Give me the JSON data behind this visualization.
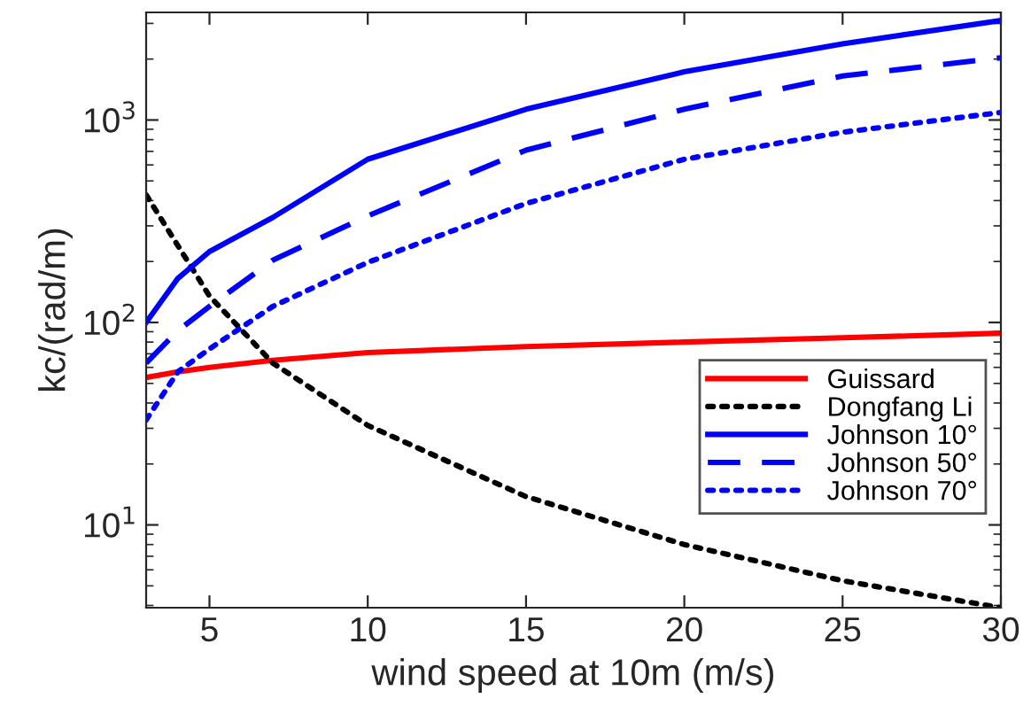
{
  "chart_data": {
    "type": "line",
    "xlabel": "wind speed at 10m (m/s)",
    "ylabel": "kc/(rad/m)",
    "log": "y",
    "x": [
      3,
      4,
      5,
      7,
      10,
      15,
      20,
      25,
      30
    ],
    "xlim": [
      3,
      30
    ],
    "xticks": [
      5,
      10,
      15,
      20,
      25,
      30
    ],
    "ylim": [
      3.9,
      3400
    ],
    "yticks": [
      {
        "value": 10,
        "label": "10$^{1}$"
      },
      {
        "value": 100,
        "label": "10$^{2}$"
      },
      {
        "value": 1000,
        "label": "10$^{3}$"
      }
    ],
    "grid": false,
    "legend": "bottom right",
    "marker": "none",
    "series": [
      {
        "name": "Guissard",
        "color": "#ff0000",
        "line_style": "solid",
        "values": [
          53.5,
          57,
          60,
          65,
          71,
          76,
          80,
          84,
          88.5
        ]
      },
      {
        "name": "Dongfang Li",
        "color": "#000000",
        "line_style": "dotted",
        "values": [
          427,
          240,
          135,
          63,
          31,
          13.8,
          8.0,
          5.3,
          3.9
        ]
      },
      {
        "name": "Johnson 10°",
        "color": "#0000ff",
        "line_style": "solid",
        "values": [
          100,
          165,
          224,
          330,
          640,
          1130,
          1730,
          2380,
          3100
        ]
      },
      {
        "name": "Johnson 50°",
        "color": "#0000ff",
        "line_style": "dashed",
        "values": [
          63,
          91,
          120,
          203,
          336,
          710,
          1130,
          1650,
          2030
        ]
      },
      {
        "name": "Johnson 70°",
        "color": "#0000ff",
        "line_style": "dotted",
        "values": [
          33,
          57,
          74,
          120,
          198,
          387,
          640,
          870,
          1090
        ]
      }
    ]
  }
}
